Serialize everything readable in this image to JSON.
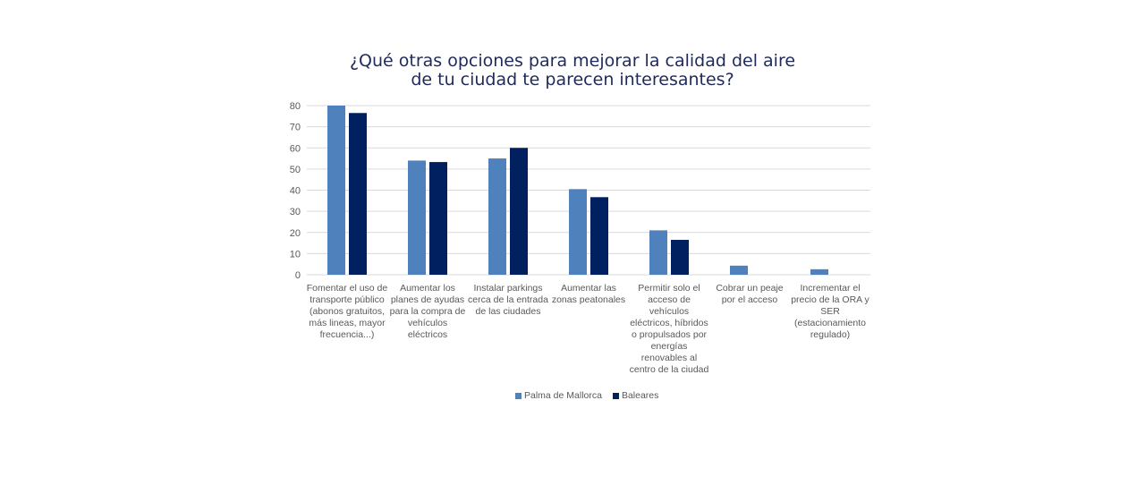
{
  "chart_data": {
    "type": "bar",
    "title_lines": [
      "¿Qué otras opciones para mejorar la calidad del aire",
      "de tu ciudad te parecen interesantes?"
    ],
    "categories": [
      [
        "Fomentar el uso de",
        "transporte público",
        "(abonos gratuitos,",
        "más lineas, mayor",
        "frecuencia...)"
      ],
      [
        "Aumentar los",
        "planes de ayudas",
        "para la compra de",
        "vehículos",
        "eléctricos"
      ],
      [
        "Instalar parkings",
        "cerca de la entrada",
        "de las ciudades"
      ],
      [
        "Aumentar las",
        "zonas peatonales"
      ],
      [
        "Permitir solo el",
        "acceso de",
        "vehículos",
        "eléctricos, híbridos",
        "o propulsados por",
        "energías",
        "renovables al",
        "centro de la ciudad"
      ],
      [
        "Cobrar un peaje",
        "por el acceso"
      ],
      [
        "Incrementar el",
        "precio de la ORA y",
        "SER",
        "(estacionamiento",
        "regulado)"
      ]
    ],
    "series": [
      {
        "name": "Palma de Mallorca",
        "color": "#4f81bd",
        "values": [
          80,
          54,
          55,
          40.5,
          21,
          4.3,
          2.6
        ]
      },
      {
        "name": "Baleares",
        "color": "#002060",
        "values": [
          76.5,
          53.3,
          60,
          36.7,
          16.5,
          null,
          null
        ]
      }
    ],
    "ylim": [
      0,
      80
    ],
    "yticks": [
      "0",
      "10",
      "20",
      "30",
      "40",
      "50",
      "60",
      "70",
      "80"
    ],
    "grid": true,
    "legend_position": "bottom",
    "xlabel": "",
    "ylabel": ""
  }
}
